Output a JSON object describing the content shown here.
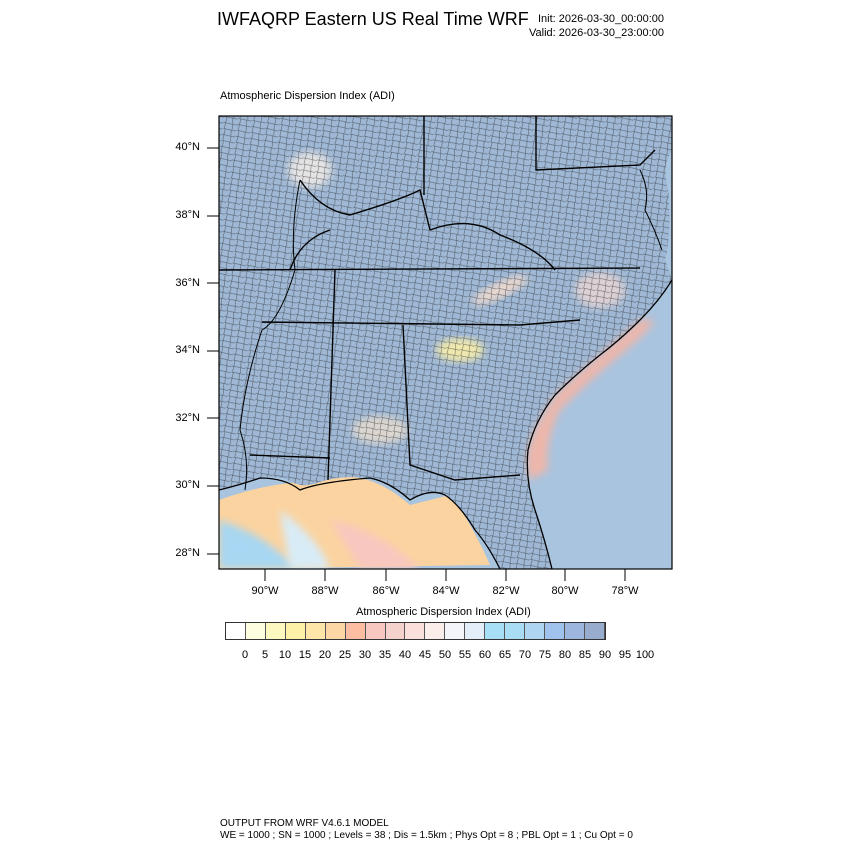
{
  "header": {
    "title": "IWFAQRP Eastern US Real Time WRF",
    "init": "Init: 2026-03-30_00:00:00",
    "valid": "Valid: 2026-03-30_23:00:00"
  },
  "map": {
    "label": "Atmospheric Dispersion Index   (ADI)",
    "lat_labels": [
      "40°N",
      "38°N",
      "36°N",
      "34°N",
      "32°N",
      "30°N",
      "28°N"
    ],
    "lon_labels": [
      "90°W",
      "88°W",
      "86°W",
      "84°W",
      "82°W",
      "80°W",
      "78°W"
    ],
    "colors": {
      "land_high": "#9fb8d5",
      "ocean": "#a9c4df",
      "coast_warm": "#f5b5a5",
      "gulf_warm": "#fbd3a0",
      "gulf_cool": "#a7d7f2",
      "border": "#000000"
    }
  },
  "colorbar": {
    "title": "Atmospheric Dispersion Index  (ADI)",
    "colors": [
      "#ffffff",
      "#fefde0",
      "#fdf8c0",
      "#fdf1a8",
      "#fde6a8",
      "#fdd6a6",
      "#fcbda3",
      "#f8c8c0",
      "#f6d2cc",
      "#f9e0da",
      "#fbeeea",
      "#f3f5fb",
      "#e4eefa",
      "#a7e0f6",
      "#a9dcf5",
      "#aed6f3",
      "#9fc3ec",
      "#9cb6dd",
      "#98accd"
    ],
    "ticks": [
      "0",
      "5",
      "10",
      "15",
      "20",
      "25",
      "30",
      "35",
      "40",
      "45",
      "50",
      "55",
      "60",
      "65",
      "70",
      "75",
      "80",
      "85",
      "90",
      "95",
      "100"
    ]
  },
  "footer": {
    "line1": "OUTPUT FROM WRF V4.6.1 MODEL",
    "line2": "WE = 1000 ; SN = 1000 ; Levels = 38 ; Dis = 1.5km ; Phys Opt = 8 ; PBL Opt = 1 ; Cu Opt = 0"
  }
}
